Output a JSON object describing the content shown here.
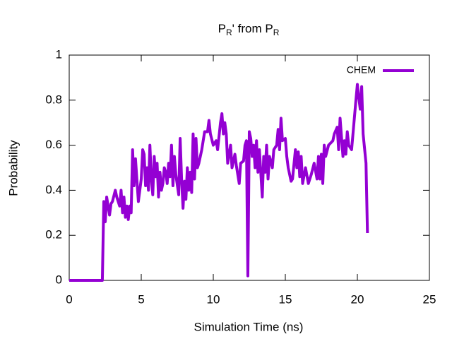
{
  "chart_data": {
    "type": "line",
    "title": [
      "P",
      "R",
      "' from P",
      "R"
    ],
    "x_label": "Simulation Time (ns)",
    "y_label": "Probability",
    "xlim": [
      0,
      25
    ],
    "xticks": [
      0,
      5,
      10,
      15,
      20,
      25
    ],
    "ylim": [
      0,
      1
    ],
    "yticks": [
      0,
      0.2,
      0.4,
      0.6,
      0.8,
      1
    ],
    "legend": "top-right",
    "x": [
      0,
      2.3,
      2.4,
      2.5,
      2.6,
      2.7,
      2.8,
      2.9,
      3.0,
      3.2,
      3.3,
      3.5,
      3.6,
      3.7,
      3.8,
      3.9,
      4.0,
      4.1,
      4.2,
      4.3,
      4.4,
      4.5,
      4.6,
      4.8,
      5.0,
      5.1,
      5.2,
      5.3,
      5.4,
      5.5,
      5.6,
      5.7,
      5.8,
      5.9,
      6.0,
      6.1,
      6.2,
      6.3,
      6.4,
      6.5,
      6.6,
      6.7,
      6.8,
      6.9,
      7.0,
      7.1,
      7.2,
      7.3,
      7.4,
      7.6,
      7.7,
      7.8,
      7.9,
      8.0,
      8.1,
      8.2,
      8.3,
      8.4,
      8.5,
      8.6,
      8.7,
      8.8,
      8.9,
      9.0,
      9.2,
      9.4,
      9.6,
      9.7,
      9.8,
      10.0,
      10.2,
      10.3,
      10.5,
      10.6,
      10.7,
      10.8,
      10.9,
      11.0,
      11.2,
      11.3,
      11.5,
      11.6,
      11.8,
      11.9,
      12.1,
      12.2,
      12.3,
      12.4,
      12.5,
      12.6,
      12.7,
      12.8,
      12.9,
      13.0,
      13.1,
      13.2,
      13.4,
      13.5,
      13.6,
      13.7,
      13.8,
      13.9,
      14.1,
      14.2,
      14.4,
      14.5,
      14.6,
      14.7,
      14.8,
      15.0,
      15.1,
      15.2,
      15.4,
      15.5,
      15.7,
      15.8,
      15.9,
      16.0,
      16.1,
      16.2,
      16.4,
      16.6,
      16.8,
      17.0,
      17.2,
      17.3,
      17.4,
      17.5,
      17.6,
      17.7,
      17.8,
      18.0,
      18.3,
      18.4,
      18.6,
      18.7,
      18.8,
      19.0,
      19.1,
      19.2,
      19.3,
      19.4,
      19.6,
      19.9,
      20.0,
      20.1,
      20.2,
      20.3,
      20.4,
      20.6,
      20.7
    ],
    "series": [
      {
        "name": "CHEM",
        "color": "#9400d3",
        "values": [
          0,
          0,
          0.35,
          0.26,
          0.37,
          0.33,
          0.29,
          0.34,
          0.35,
          0.4,
          0.37,
          0.33,
          0.4,
          0.3,
          0.37,
          0.28,
          0.33,
          0.27,
          0.33,
          0.3,
          0.58,
          0.42,
          0.54,
          0.35,
          0.45,
          0.58,
          0.56,
          0.42,
          0.5,
          0.4,
          0.6,
          0.45,
          0.38,
          0.55,
          0.46,
          0.52,
          0.37,
          0.48,
          0.4,
          0.43,
          0.5,
          0.48,
          0.43,
          0.52,
          0.46,
          0.6,
          0.42,
          0.55,
          0.47,
          0.38,
          0.63,
          0.45,
          0.32,
          0.44,
          0.36,
          0.5,
          0.4,
          0.48,
          0.39,
          0.65,
          0.45,
          0.63,
          0.5,
          0.52,
          0.58,
          0.66,
          0.66,
          0.71,
          0.65,
          0.6,
          0.62,
          0.58,
          0.7,
          0.74,
          0.65,
          0.7,
          0.65,
          0.52,
          0.6,
          0.5,
          0.56,
          0.51,
          0.43,
          0.52,
          0.53,
          0.6,
          0.62,
          0.02,
          0.66,
          0.63,
          0.55,
          0.6,
          0.5,
          0.62,
          0.48,
          0.58,
          0.37,
          0.55,
          0.48,
          0.6,
          0.45,
          0.55,
          0.5,
          0.58,
          0.6,
          0.67,
          0.58,
          0.72,
          0.62,
          0.63,
          0.55,
          0.5,
          0.44,
          0.45,
          0.58,
          0.5,
          0.57,
          0.46,
          0.55,
          0.43,
          0.5,
          0.43,
          0.47,
          0.52,
          0.45,
          0.55,
          0.45,
          0.56,
          0.43,
          0.6,
          0.55,
          0.6,
          0.62,
          0.65,
          0.68,
          0.58,
          0.72,
          0.55,
          0.62,
          0.56,
          0.66,
          0.6,
          0.58,
          0.8,
          0.87,
          0.81,
          0.76,
          0.86,
          0.65,
          0.52,
          0.21
        ]
      }
    ]
  }
}
